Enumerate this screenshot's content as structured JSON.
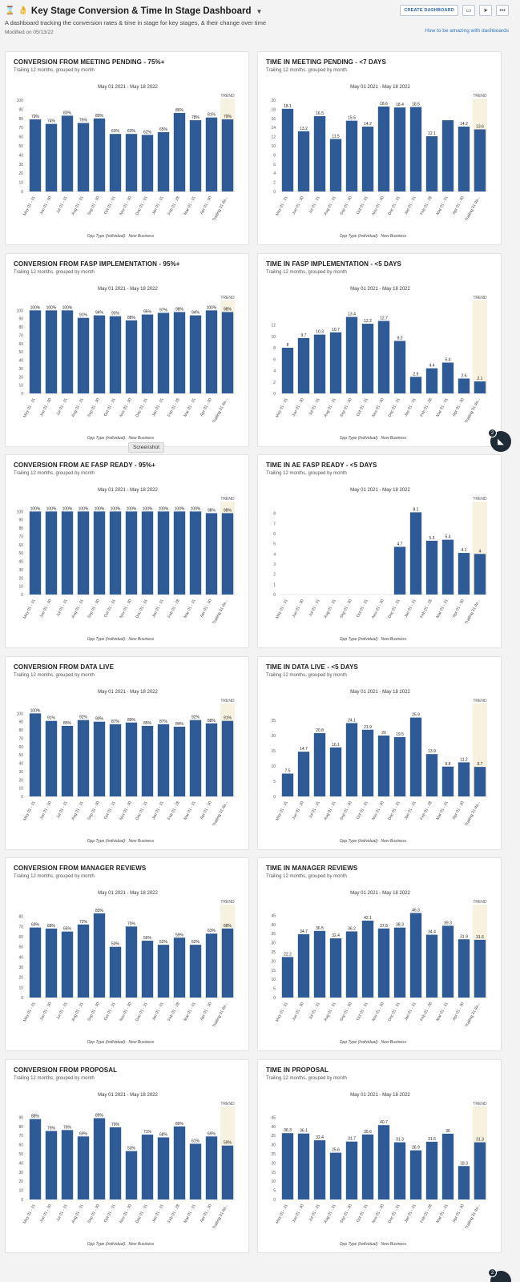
{
  "header": {
    "title": "Key Stage Conversion & Time In Stage Dashboard",
    "description": "A dashboard tracking the conversion rates & time in stage for key stages, & their change over time",
    "modified": "Modified on 05/13/22",
    "create_button": "CREATE DASHBOARD",
    "help_link": "How to be amazing with dashboards",
    "folder_icon": "folder-icon",
    "share_icon": "share-icon",
    "more_icon": "more-icon",
    "more_label": "•••"
  },
  "tooltip": "Screenshot",
  "chat_badge": "2",
  "panel_subtitle": "Trailing 12 months, grouped by month",
  "date_range": "May 01 2021 - May 18 2022",
  "footer_label": "Opp Type (Individual):",
  "footer_value": "New Business",
  "trend_label": "TREND",
  "accent": "#2e5a96",
  "trend_bg": "#f7f2df",
  "chart_data": [
    {
      "title": "CONVERSION FROM MEETING PENDING - 75%+",
      "type": "bar",
      "categories": [
        "May 01 - 31",
        "Jun 01 - 30",
        "Jul 01 - 31",
        "Aug 01 - 31",
        "Sep 01 - 30",
        "Oct 01 - 31",
        "Nov 01 - 30",
        "Dec 01 - 31",
        "Jan 01 - 31",
        "Feb 01 - 28",
        "Mar 01 - 31",
        "Apr 01 - 30",
        "Trailing 31 da..."
      ],
      "values": [
        79,
        74,
        83,
        75,
        80,
        63,
        63,
        62,
        65,
        86,
        78,
        81,
        79
      ],
      "labels": [
        "79%",
        "74%",
        "83%",
        "75%",
        "80%",
        "63%",
        "63%",
        "62%",
        "65%",
        "86%",
        "78%",
        "81%",
        "79%"
      ],
      "ylim": [
        0,
        100
      ],
      "yticks": [
        0,
        10,
        20,
        30,
        40,
        50,
        60,
        70,
        80,
        90,
        100
      ]
    },
    {
      "title": "TIME IN MEETING PENDING - <7 DAYS",
      "type": "bar",
      "categories": [
        "May 01 - 31",
        "Jun 01 - 30",
        "Jul 01 - 31",
        "Aug 01 - 31",
        "Sep 01 - 30",
        "Oct 01 - 31",
        "Nov 01 - 30",
        "Dec 01 - 31",
        "Jan 01 - 31",
        "Feb 01 - 28",
        "Mar 01 - 31",
        "Apr 01 - 30",
        "Trailing 31 da..."
      ],
      "values": [
        18.1,
        13.2,
        16.5,
        11.5,
        15.5,
        14.2,
        18.6,
        18.4,
        18.5,
        12.1,
        15.6,
        14.2,
        13.6
      ],
      "labels": [
        "18.1",
        "13.2",
        "16.5",
        "11.5",
        "15.5",
        "14.2",
        "18.6",
        "18.4",
        "18.5",
        "12.1",
        "",
        "14.2",
        "13.6"
      ],
      "ylim": [
        0,
        20
      ],
      "yticks": [
        0,
        2,
        4,
        6,
        8,
        10,
        12,
        14,
        16,
        18,
        20
      ]
    },
    {
      "title": "CONVERSION FROM FASP IMPLEMENTATION - 95%+",
      "type": "bar",
      "categories": [
        "May 01 - 31",
        "Jun 01 - 30",
        "Jul 01 - 31",
        "Aug 01 - 31",
        "Sep 01 - 30",
        "Oct 01 - 31",
        "Nov 01 - 30",
        "Dec 01 - 31",
        "Jan 01 - 31",
        "Feb 01 - 28",
        "Mar 01 - 31",
        "Apr 01 - 30",
        "Trailing 31 da..."
      ],
      "values": [
        100,
        100,
        100,
        91,
        94,
        93,
        88,
        95,
        97,
        98,
        94,
        100,
        98
      ],
      "labels": [
        "100%",
        "100%",
        "100%",
        "91%",
        "94%",
        "93%",
        "88%",
        "95%",
        "97%",
        "98%",
        "94%",
        "100%",
        "98%"
      ],
      "ylim": [
        0,
        110
      ],
      "yticks": [
        0,
        10,
        20,
        30,
        40,
        50,
        60,
        70,
        80,
        90,
        100
      ]
    },
    {
      "title": "TIME IN FASP IMPLEMENTATION - <5 DAYS",
      "type": "bar",
      "categories": [
        "May 01 - 31",
        "Jun 01 - 30",
        "Jul 01 - 31",
        "Aug 01 - 31",
        "Sep 01 - 30",
        "Oct 01 - 31",
        "Nov 01 - 30",
        "Dec 01 - 31",
        "Jan 01 - 31",
        "Feb 01 - 28",
        "Mar 01 - 31",
        "Apr 01 - 30",
        "Trailing 31 da..."
      ],
      "values": [
        8,
        9.7,
        10.3,
        10.7,
        13.4,
        12.2,
        12.7,
        9.2,
        2.9,
        4.4,
        5.4,
        2.6,
        2.1
      ],
      "labels": [
        "8",
        "9.7",
        "10.3",
        "10.7",
        "13.4",
        "12.2",
        "12.7",
        "9.2",
        "2.9",
        "4.4",
        "5.4",
        "2.6",
        "2.1"
      ],
      "ylim": [
        0,
        16
      ],
      "yticks": [
        0,
        2,
        4,
        6,
        8,
        10,
        12
      ]
    },
    {
      "title": "CONVERSION FROM AE FASP READY - 95%+",
      "type": "bar",
      "categories": [
        "May 01 - 31",
        "Jun 01 - 30",
        "Jul 01 - 31",
        "Aug 01 - 31",
        "Sep 01 - 30",
        "Oct 01 - 31",
        "Nov 01 - 30",
        "Dec 01 - 31",
        "Jan 01 - 31",
        "Feb 01 - 28",
        "Mar 01 - 31",
        "Apr 01 - 30",
        "Trailing 31 da..."
      ],
      "values": [
        100,
        100,
        100,
        100,
        100,
        100,
        100,
        100,
        100,
        100,
        100,
        98,
        98
      ],
      "labels": [
        "100%",
        "100%",
        "100%",
        "100%",
        "100%",
        "100%",
        "100%",
        "100%",
        "100%",
        "100%",
        "100%",
        "98%",
        "98%"
      ],
      "ylim": [
        0,
        110
      ],
      "yticks": [
        0,
        10,
        20,
        30,
        40,
        50,
        60,
        70,
        80,
        90,
        100
      ]
    },
    {
      "title": "TIME IN AE FASP READY - <5 DAYS",
      "type": "bar",
      "categories": [
        "May 01 - 31",
        "Jun 01 - 30",
        "Jul 01 - 31",
        "Aug 01 - 31",
        "Sep 01 - 30",
        "Oct 01 - 31",
        "Nov 01 - 30",
        "Dec 01 - 31",
        "Jan 01 - 31",
        "Feb 01 - 28",
        "Mar 01 - 31",
        "Apr 01 - 30",
        "Trailing 31 da..."
      ],
      "values": [
        0,
        0,
        0,
        0,
        0,
        0,
        0,
        4.7,
        8.1,
        5.3,
        5.4,
        4.1,
        4
      ],
      "labels": [
        "",
        "",
        "",
        "",
        "",
        "",
        "",
        "4.7",
        "8.1",
        "5.3",
        "5.4",
        "4.1",
        "4"
      ],
      "ylim": [
        0,
        9
      ],
      "yticks": [
        0,
        1,
        2,
        3,
        4,
        5,
        6,
        7,
        8
      ]
    },
    {
      "title": "CONVERSION FROM DATA LIVE",
      "type": "bar",
      "categories": [
        "May 01 - 31",
        "Jun 01 - 30",
        "Jul 01 - 31",
        "Aug 01 - 31",
        "Sep 01 - 30",
        "Oct 01 - 31",
        "Nov 01 - 30",
        "Dec 01 - 31",
        "Jan 01 - 31",
        "Feb 01 - 28",
        "Mar 01 - 31",
        "Apr 01 - 30",
        "Trailing 31 da..."
      ],
      "values": [
        100,
        91,
        85,
        92,
        90,
        87,
        89,
        85,
        87,
        84,
        92,
        88,
        91
      ],
      "labels": [
        "100%",
        "91%",
        "85%",
        "92%",
        "90%",
        "87%",
        "89%",
        "85%",
        "87%",
        "84%",
        "92%",
        "88%",
        "91%"
      ],
      "ylim": [
        0,
        110
      ],
      "yticks": [
        0,
        10,
        20,
        30,
        40,
        50,
        60,
        70,
        80,
        90,
        100
      ]
    },
    {
      "title": "TIME IN DATA LIVE - <5 DAYS",
      "type": "bar",
      "categories": [
        "May 01 - 31",
        "Jun 01 - 30",
        "Jul 01 - 31",
        "Aug 01 - 31",
        "Sep 01 - 30",
        "Oct 01 - 31",
        "Nov 01 - 30",
        "Dec 01 - 31",
        "Jan 01 - 31",
        "Feb 01 - 28",
        "Mar 01 - 31",
        "Apr 01 - 30",
        "Trailing 31 da..."
      ],
      "values": [
        7.5,
        14.7,
        20.8,
        16.1,
        24.1,
        21.9,
        20,
        19.5,
        25.9,
        13.9,
        9.8,
        11.2,
        9.7
      ],
      "labels": [
        "7.5",
        "14.7",
        "20.8",
        "16.1",
        "24.1",
        "21.9",
        "20",
        "19.5",
        "25.9",
        "13.9",
        "9.8",
        "11.2",
        "9.7"
      ],
      "ylim": [
        0,
        30
      ],
      "yticks": [
        0,
        5,
        10,
        15,
        20,
        25
      ]
    },
    {
      "title": "CONVERSION FROM MANAGER REVIEWS",
      "type": "bar",
      "categories": [
        "May 01 - 31",
        "Jun 01 - 30",
        "Jul 01 - 31",
        "Aug 01 - 31",
        "Sep 01 - 30",
        "Oct 01 - 31",
        "Nov 01 - 30",
        "Dec 01 - 31",
        "Jan 01 - 31",
        "Feb 01 - 28",
        "Mar 01 - 31",
        "Apr 01 - 30",
        "Trailing 31 da..."
      ],
      "values": [
        69,
        68,
        65,
        72,
        83,
        50,
        70,
        56,
        52,
        59,
        52,
        63,
        68
      ],
      "labels": [
        "69%",
        "68%",
        "65%",
        "72%",
        "83%",
        "50%",
        "70%",
        "56%",
        "52%",
        "59%",
        "52%",
        "63%",
        "68%"
      ],
      "ylim": [
        0,
        90
      ],
      "yticks": [
        0,
        10,
        20,
        30,
        40,
        50,
        60,
        70,
        80
      ]
    },
    {
      "title": "TIME IN MANAGER REVIEWS",
      "type": "bar",
      "categories": [
        "May 01 - 31",
        "Jun 01 - 30",
        "Jul 01 - 31",
        "Aug 01 - 31",
        "Sep 01 - 30",
        "Oct 01 - 31",
        "Nov 01 - 30",
        "Dec 01 - 31",
        "Jan 01 - 31",
        "Feb 01 - 28",
        "Mar 01 - 31",
        "Apr 01 - 30",
        "Trailing 31 da..."
      ],
      "values": [
        22.2,
        34.7,
        36.5,
        32.4,
        36.2,
        42.1,
        37.8,
        38.3,
        46.3,
        34.4,
        39.3,
        31.9,
        31.6
      ],
      "labels": [
        "22.2",
        "34.7",
        "36.5",
        "32.4",
        "36.2",
        "42.1",
        "37.8",
        "38.3",
        "46.3",
        "34.4",
        "39.3",
        "31.9",
        "31.6"
      ],
      "ylim": [
        0,
        50
      ],
      "yticks": [
        0,
        5,
        10,
        15,
        20,
        25,
        30,
        35,
        40,
        45
      ]
    },
    {
      "title": "CONVERSION FROM PROPOSAL",
      "type": "bar",
      "categories": [
        "May 01 - 31",
        "Jun 01 - 30",
        "Jul 01 - 31",
        "Aug 01 - 31",
        "Sep 01 - 30",
        "Oct 01 - 31",
        "Nov 01 - 30",
        "Dec 01 - 31",
        "Jan 01 - 31",
        "Feb 01 - 28",
        "Mar 01 - 31",
        "Apr 01 - 30",
        "Trailing 31 da..."
      ],
      "values": [
        88,
        75,
        76,
        69,
        89,
        79,
        53,
        71,
        68,
        80,
        61,
        69,
        59
      ],
      "labels": [
        "88%",
        "75%",
        "76%",
        "69%",
        "89%",
        "79%",
        "53%",
        "71%",
        "68%",
        "80%",
        "61%",
        "69%",
        "59%"
      ],
      "ylim": [
        0,
        100
      ],
      "yticks": [
        0,
        10,
        20,
        30,
        40,
        50,
        60,
        70,
        80,
        90
      ]
    },
    {
      "title": "TIME IN PROPOSAL",
      "type": "bar",
      "categories": [
        "May 01 - 31",
        "Jun 01 - 30",
        "Jul 01 - 31",
        "Aug 01 - 31",
        "Sep 01 - 30",
        "Oct 01 - 31",
        "Nov 01 - 30",
        "Dec 01 - 31",
        "Jan 01 - 31",
        "Feb 01 - 28",
        "Mar 01 - 31",
        "Apr 01 - 30",
        "Trailing 31 da..."
      ],
      "values": [
        36.3,
        36.1,
        32.4,
        25.6,
        31.7,
        35.6,
        40.7,
        31.3,
        26.9,
        31.6,
        36,
        18.3,
        31.3
      ],
      "labels": [
        "36.3",
        "36.1",
        "32.4",
        "25.6",
        "31.7",
        "35.6",
        "40.7",
        "31.3",
        "26.9",
        "31.6",
        "36",
        "18.3",
        "31.3"
      ],
      "ylim": [
        0,
        50
      ],
      "yticks": [
        0,
        5,
        10,
        15,
        20,
        25,
        30,
        35,
        40,
        45
      ]
    }
  ]
}
